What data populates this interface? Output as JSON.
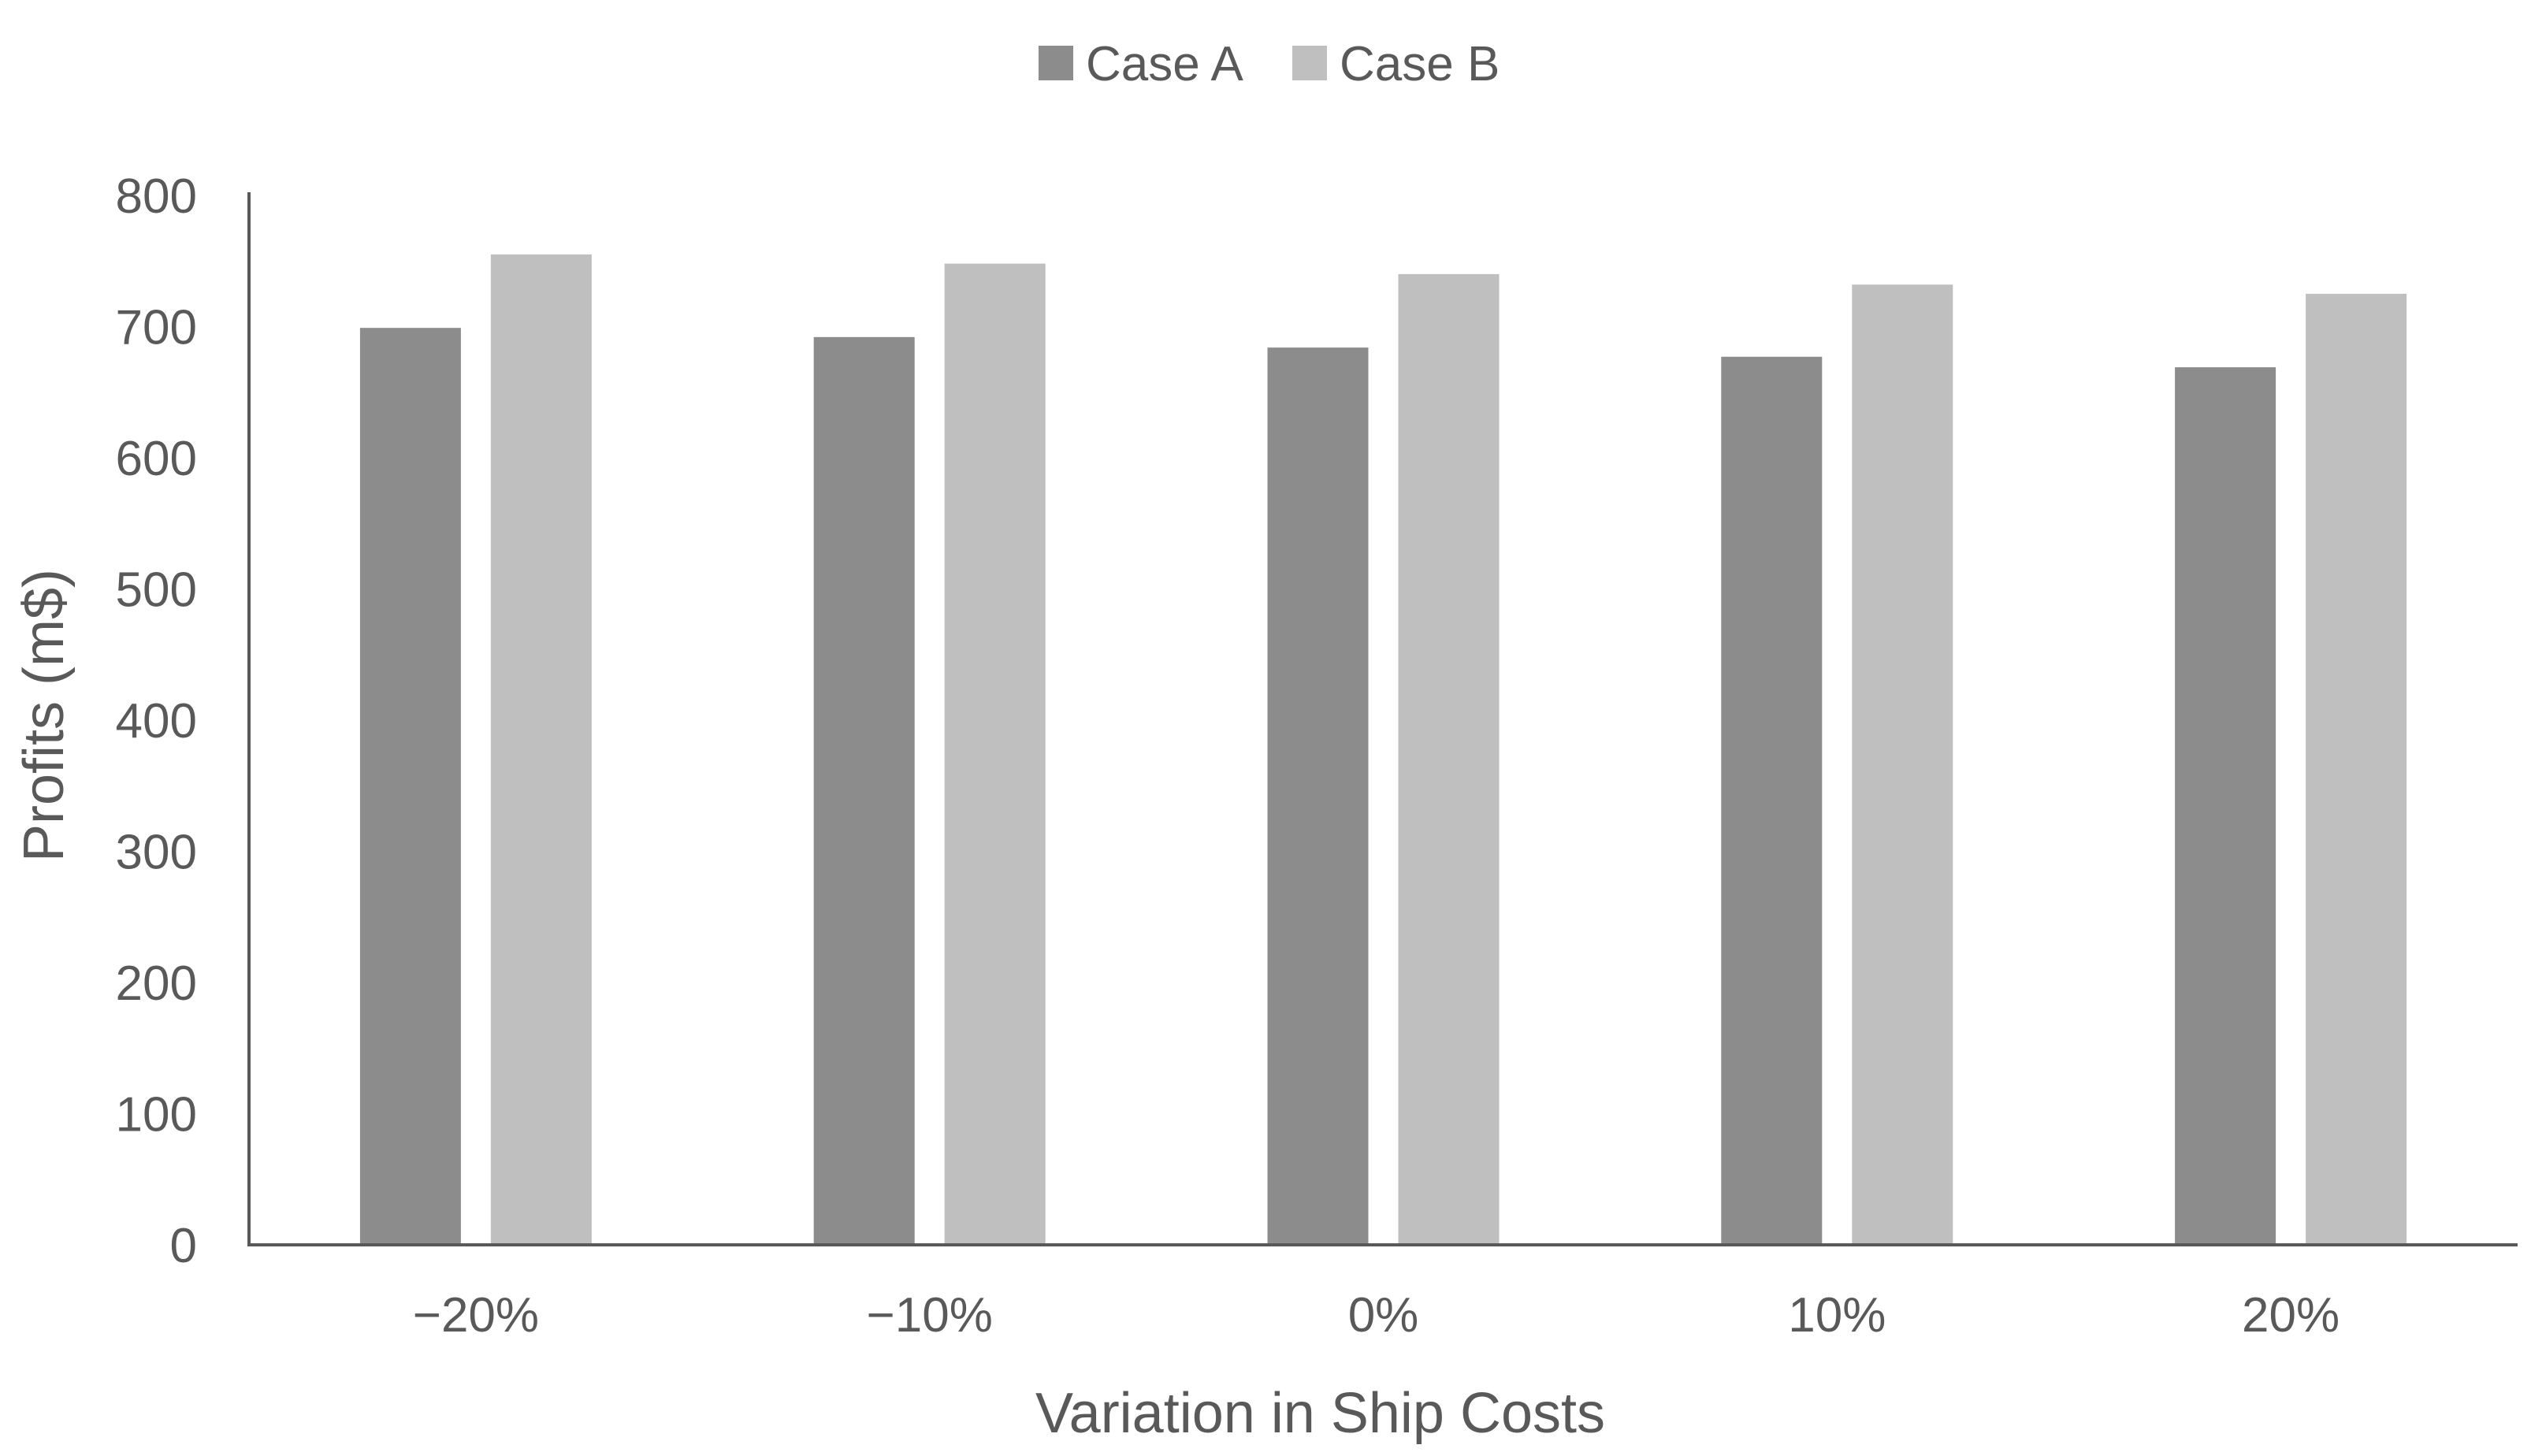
{
  "chart_data": {
    "type": "bar",
    "title": "",
    "xlabel": "Variation in Ship Costs",
    "ylabel": "Profits (m$)",
    "categories": [
      "−20%",
      "−10%",
      "0%",
      "10%",
      "20%"
    ],
    "series": [
      {
        "name": "Case A",
        "color": "#8c8c8c",
        "values": [
          699,
          692,
          684,
          677,
          669
        ]
      },
      {
        "name": "Case B",
        "color": "#bfbfbf",
        "values": [
          755,
          748,
          740,
          732,
          725
        ]
      }
    ],
    "ylim": [
      0,
      800
    ],
    "yticks": [
      "0",
      "100",
      "200",
      "300",
      "400",
      "500",
      "600",
      "700",
      "800"
    ],
    "grid": false,
    "legend_position": "top-center"
  }
}
